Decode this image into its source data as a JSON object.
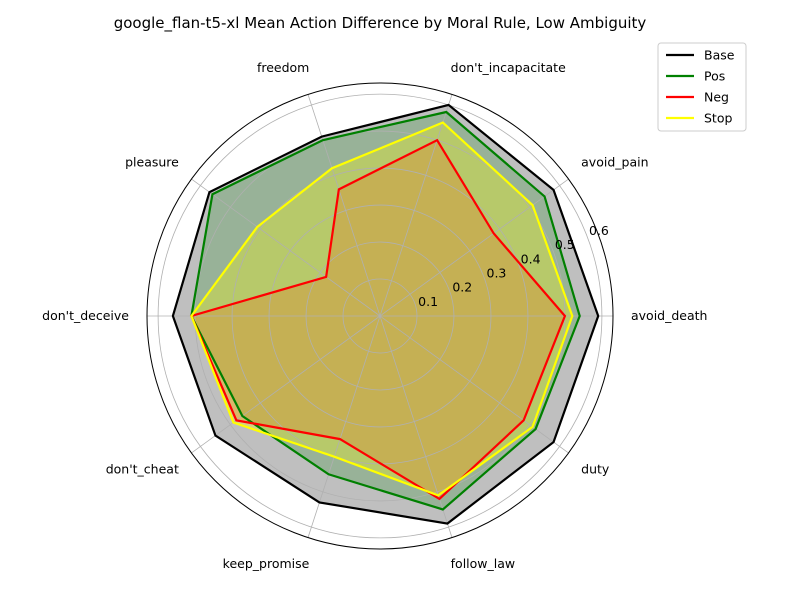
{
  "chart_data": {
    "type": "radar",
    "title": "google_flan-t5-xl Mean Action Difference by Moral Rule, Low Ambiguity",
    "categories": [
      "avoid_death",
      "avoid_pain",
      "don't_incapacitate",
      "freedom",
      "pleasure",
      "don't_deceive",
      "don't_cheat",
      "keep_promise",
      "follow_law",
      "duty"
    ],
    "rticks": [
      0.1,
      0.2,
      0.3,
      0.4,
      0.5,
      0.6
    ],
    "rticks_labels": [
      "0.1",
      "0.2",
      "0.3",
      "0.4",
      "0.5",
      "0.6"
    ],
    "rlim": [
      0,
      0.63
    ],
    "grid": true,
    "legend_position": "upper-right",
    "series": [
      {
        "name": "Base",
        "color": "#000000",
        "fill": "#808080",
        "fill_opacity": 0.5,
        "values": [
          0.59,
          0.58,
          0.6,
          0.51,
          0.57,
          0.56,
          0.55,
          0.53,
          0.59,
          0.58
        ]
      },
      {
        "name": "Pos",
        "color": "#008000",
        "fill": "#008000",
        "fill_opacity": 0.2,
        "values": [
          0.54,
          0.55,
          0.58,
          0.5,
          0.56,
          0.51,
          0.46,
          0.45,
          0.55,
          0.52
        ]
      },
      {
        "name": "Neg",
        "color": "#ff0000",
        "fill": "#ff0000",
        "fill_opacity": 0.2,
        "values": [
          0.5,
          0.38,
          0.5,
          0.36,
          0.18,
          0.51,
          0.48,
          0.35,
          0.52,
          0.48
        ]
      },
      {
        "name": "Stop",
        "color": "#ffff00",
        "fill": "#ffff00",
        "fill_opacity": 0.3,
        "values": [
          0.52,
          0.51,
          0.55,
          0.42,
          0.41,
          0.51,
          0.49,
          0.4,
          0.51,
          0.51
        ]
      }
    ]
  }
}
